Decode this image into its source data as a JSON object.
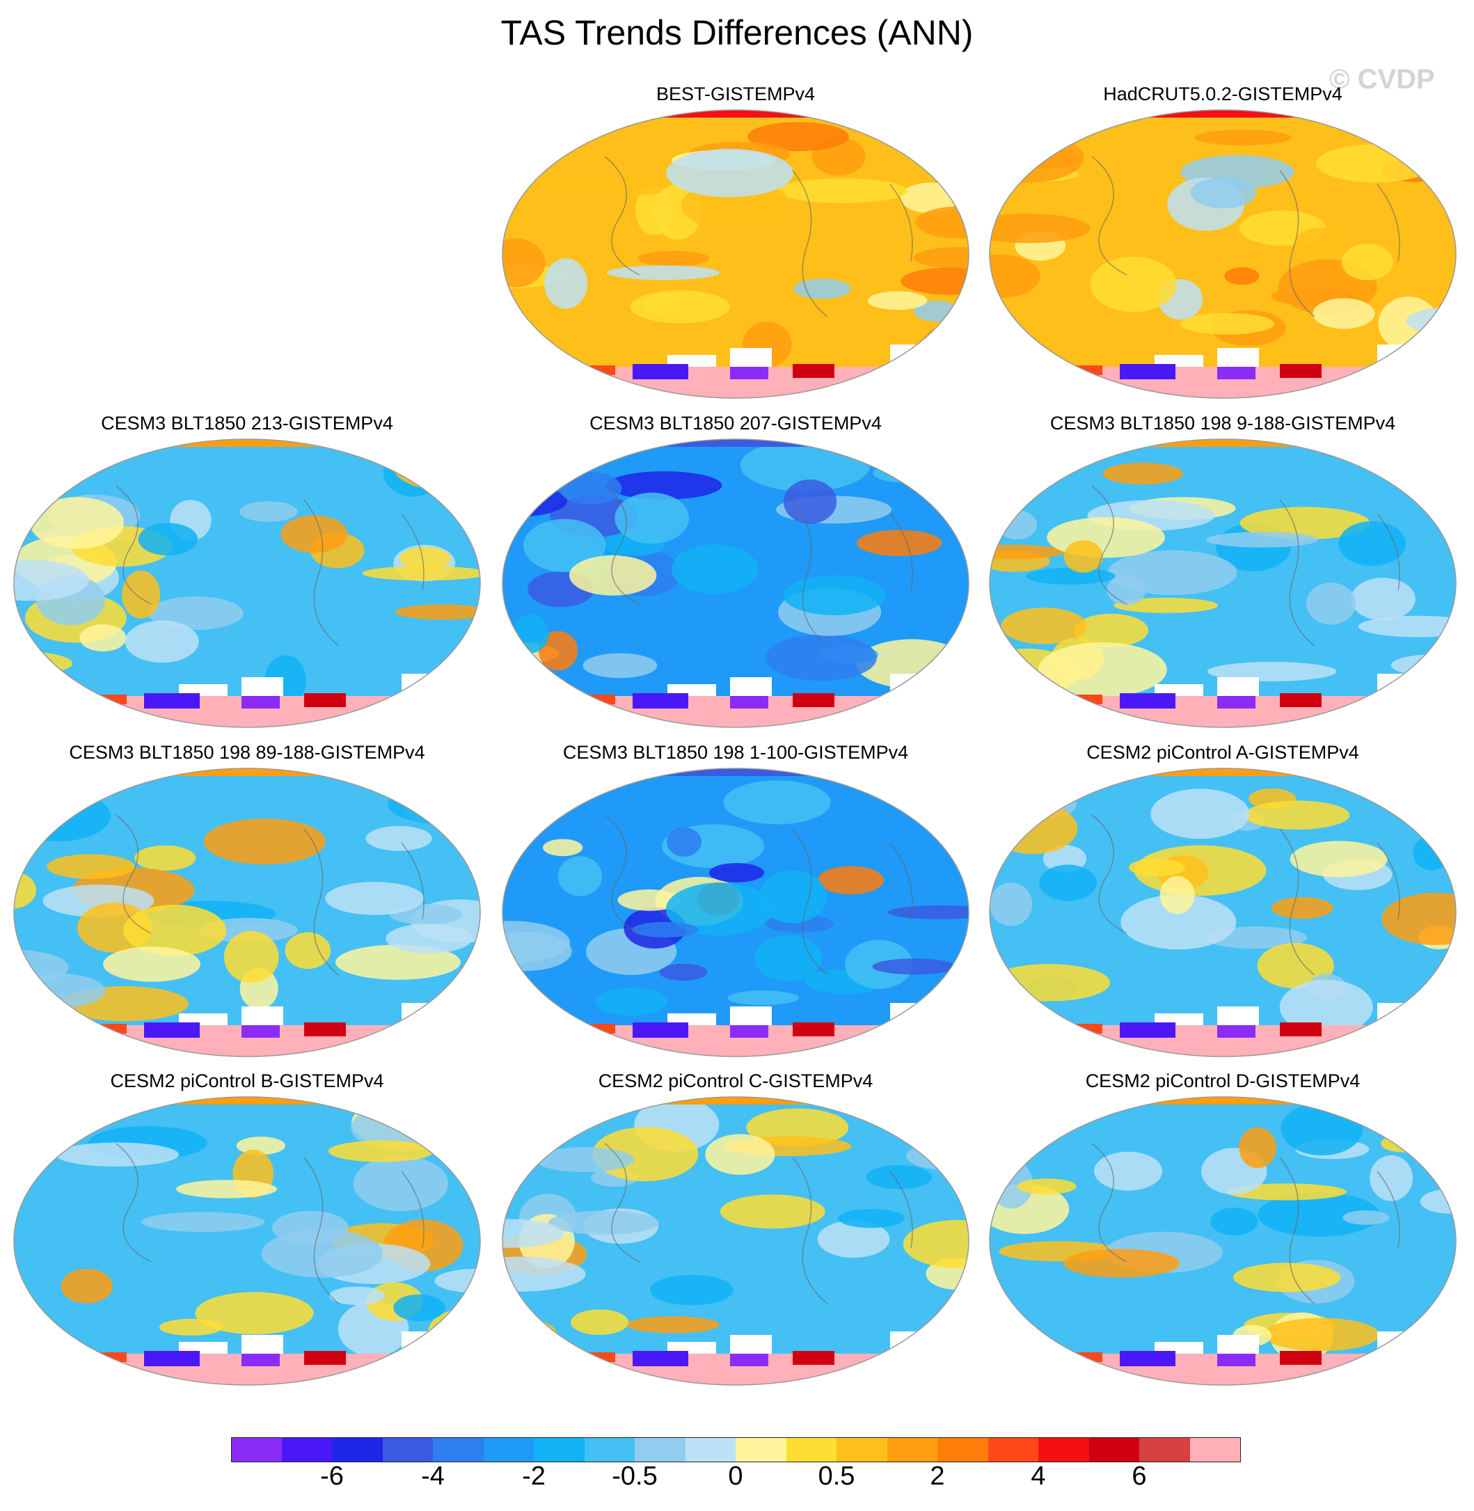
{
  "title": "TAS Trends Differences (ANN)",
  "watermark": "© CVDP",
  "colorbar": {
    "colors": [
      "#8a2cf5",
      "#4a18f6",
      "#1e26e8",
      "#3a5ce0",
      "#2e7ef0",
      "#1f9af8",
      "#12b2f6",
      "#44c0f4",
      "#90cdef",
      "#bce0f6",
      "#fff59c",
      "#ffdd33",
      "#ffbf1a",
      "#ff9e10",
      "#ff7d0a",
      "#ff4818",
      "#f41010",
      "#d00010",
      "#d64040",
      "#ffb0b8"
    ],
    "labels": [
      "-6",
      "-4",
      "-2",
      "-0.5",
      "0",
      "0.5",
      "2",
      "4",
      "6"
    ]
  },
  "panels": [
    {
      "title": "BEST-GISTEMPv4",
      "theme": "warm"
    },
    {
      "title": "HadCRUT5.0.2-GISTEMPv4",
      "theme": "warm"
    },
    {
      "title": "CESM3 BLT1850 213-GISTEMPv4",
      "theme": "cool"
    },
    {
      "title": "CESM3 BLT1850 207-GISTEMPv4",
      "theme": "cold"
    },
    {
      "title": "CESM3 BLT1850 198 9-188-GISTEMPv4",
      "theme": "cool"
    },
    {
      "title": "CESM3 BLT1850 198 89-188-GISTEMPv4",
      "theme": "cool"
    },
    {
      "title": "CESM3 BLT1850 198 1-100-GISTEMPv4",
      "theme": "cold"
    },
    {
      "title": "CESM2 piControl A-GISTEMPv4",
      "theme": "cool"
    },
    {
      "title": "CESM2 piControl B-GISTEMPv4",
      "theme": "cool"
    },
    {
      "title": "CESM2 piControl C-GISTEMPv4",
      "theme": "cool"
    },
    {
      "title": "CESM2 piControl D-GISTEMPv4",
      "theme": "cool"
    }
  ]
}
